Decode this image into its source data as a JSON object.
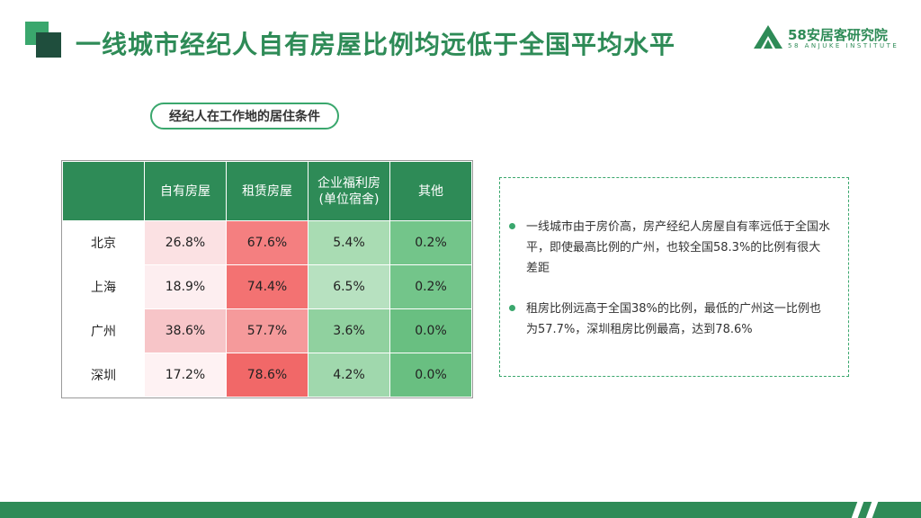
{
  "title": "一线城市经纪人自有房屋比例均远低于全国平均水平",
  "logo": {
    "name": "58安居客研究院",
    "sub": "58 ANJUKE INSTITUTE"
  },
  "subtitle": "经纪人在工作地的居住条件",
  "table": {
    "headers": [
      "",
      "自有房屋",
      "租赁房屋",
      "企业福利房\n(单位宿舍)",
      "其他"
    ],
    "rows": [
      {
        "city": "北京",
        "values": [
          "26.8%",
          "67.6%",
          "5.4%",
          "0.2%"
        ]
      },
      {
        "city": "上海",
        "values": [
          "18.9%",
          "74.4%",
          "6.5%",
          "0.2%"
        ]
      },
      {
        "city": "广州",
        "values": [
          "38.6%",
          "57.7%",
          "3.6%",
          "0.0%"
        ]
      },
      {
        "city": "深圳",
        "values": [
          "17.2%",
          "78.6%",
          "4.2%",
          "0.0%"
        ]
      }
    ]
  },
  "notes": [
    "一线城市由于房价高，房产经纪人房屋自有率远低于全国水平，即使最高比例的广州，也较全国58.3%的比例有很大差距",
    "租房比例远高于全国38%的比例，最低的广州这一比例也为57.7%，深圳租房比例最高，达到78.6%"
  ],
  "colors": {
    "brand_green": "#2e8b57",
    "accent_green": "#3aa76d",
    "dark_green": "#1f4e3d"
  },
  "cell_colors": [
    [
      "#fbe1e3",
      "#f47f80",
      "#a9dcb3",
      "#73c58a"
    ],
    [
      "#fdeef0",
      "#f37272",
      "#b7e1c0",
      "#73c58a"
    ],
    [
      "#f7c5c8",
      "#f59a9b",
      "#90d19f",
      "#69bf81"
    ],
    [
      "#fef2f3",
      "#f16868",
      "#a0d8ad",
      "#69bf81"
    ]
  ]
}
